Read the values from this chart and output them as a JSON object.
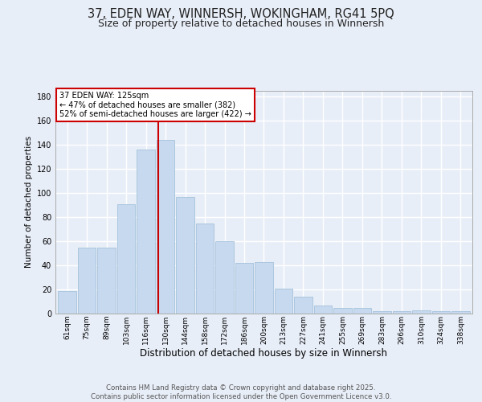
{
  "title": "37, EDEN WAY, WINNERSH, WOKINGHAM, RG41 5PQ",
  "subtitle": "Size of property relative to detached houses in Winnersh",
  "xlabel": "Distribution of detached houses by size in Winnersh",
  "ylabel": "Number of detached properties",
  "categories": [
    "61sqm",
    "75sqm",
    "89sqm",
    "103sqm",
    "116sqm",
    "130sqm",
    "144sqm",
    "158sqm",
    "172sqm",
    "186sqm",
    "200sqm",
    "213sqm",
    "227sqm",
    "241sqm",
    "255sqm",
    "269sqm",
    "283sqm",
    "296sqm",
    "310sqm",
    "324sqm",
    "338sqm"
  ],
  "values": [
    19,
    55,
    55,
    91,
    136,
    144,
    97,
    75,
    60,
    42,
    43,
    21,
    14,
    7,
    5,
    5,
    2,
    2,
    3,
    2,
    2
  ],
  "bar_color": "#c6d9ee",
  "bar_edge_color": "#9abbd6",
  "vline_color": "#cc0000",
  "vline_pos": 4.64,
  "annotation_line1": "37 EDEN WAY: 125sqm",
  "annotation_line2": "← 47% of detached houses are smaller (382)",
  "annotation_line3": "52% of semi-detached houses are larger (422) →",
  "ylim_max": 185,
  "yticks": [
    0,
    20,
    40,
    60,
    80,
    100,
    120,
    140,
    160,
    180
  ],
  "bg_color": "#e8eef8",
  "grid_color": "#ffffff",
  "footer": "Contains HM Land Registry data © Crown copyright and database right 2025.\nContains public sector information licensed under the Open Government Licence v3.0."
}
